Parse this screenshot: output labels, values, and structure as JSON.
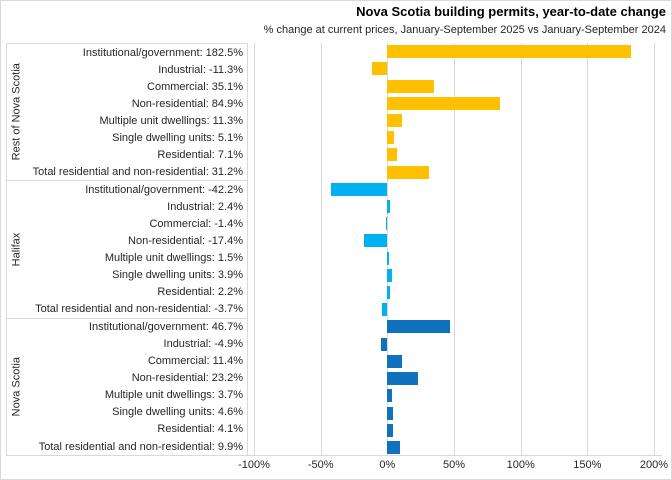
{
  "title": "Nova Scotia building permits, year-to-date change",
  "subtitle": "% change at current prices, January-September 2025 vs January-September 2024",
  "colors": {
    "rest_of_nova_scotia": "#FFC000",
    "halifax": "#00B0F0",
    "nova_scotia": "#1072BC",
    "gridline": "#d9d9d9",
    "text": "#262626"
  },
  "chart_data": {
    "type": "bar",
    "orientation": "horizontal",
    "title": "Nova Scotia building permits, year-to-date change",
    "subtitle": "% change at current prices, January-September 2025 vs January-September 2024",
    "xlabel": "",
    "ylabel": "",
    "xlim": [
      -100,
      200
    ],
    "grid": true,
    "x_tick_labels": [
      "-100%",
      "-50%",
      "0%",
      "50%",
      "100%",
      "150%",
      "200%"
    ],
    "x_tick_values": [
      -100,
      -50,
      0,
      50,
      100,
      150,
      200
    ],
    "categories": [
      "Institutional/government",
      "Industrial",
      "Commercial",
      "Non-residential",
      "Multiple unit dwellings",
      "Single dwelling units",
      "Residential",
      "Total residential and non-residential"
    ],
    "groups": [
      {
        "name": "Rest of Nova Scotia",
        "color": "#FFC000",
        "values": [
          182.5,
          -11.3,
          35.1,
          84.9,
          11.3,
          5.1,
          7.1,
          31.2
        ],
        "row_labels": [
          "Institutional/government: 182.5%",
          "Industrial: -11.3%",
          "Commercial: 35.1%",
          "Non-residential: 84.9%",
          "Multiple unit dwellings: 11.3%",
          "Single dwelling units: 5.1%",
          "Residential: 7.1%",
          "Total residential and non-residential: 31.2%"
        ]
      },
      {
        "name": "Halifax",
        "color": "#00B0F0",
        "values": [
          -42.2,
          2.4,
          -1.4,
          -17.4,
          1.5,
          3.9,
          2.2,
          -3.7
        ],
        "row_labels": [
          "Institutional/government: -42.2%",
          "Industrial: 2.4%",
          "Commercial: -1.4%",
          "Non-residential: -17.4%",
          "Multiple unit dwellings: 1.5%",
          "Single dwelling units: 3.9%",
          "Residential: 2.2%",
          "Total residential and non-residential: -3.7%"
        ]
      },
      {
        "name": "Nova Scotia",
        "color": "#1072BC",
        "values": [
          46.7,
          -4.9,
          11.4,
          23.2,
          3.7,
          4.6,
          4.1,
          9.9
        ],
        "row_labels": [
          "Institutional/government: 46.7%",
          "Industrial: -4.9%",
          "Commercial: 11.4%",
          "Non-residential: 23.2%",
          "Multiple unit dwellings: 3.7%",
          "Single dwelling units: 4.6%",
          "Residential: 4.1%",
          "Total residential and non-residential: 9.9%"
        ]
      }
    ]
  }
}
